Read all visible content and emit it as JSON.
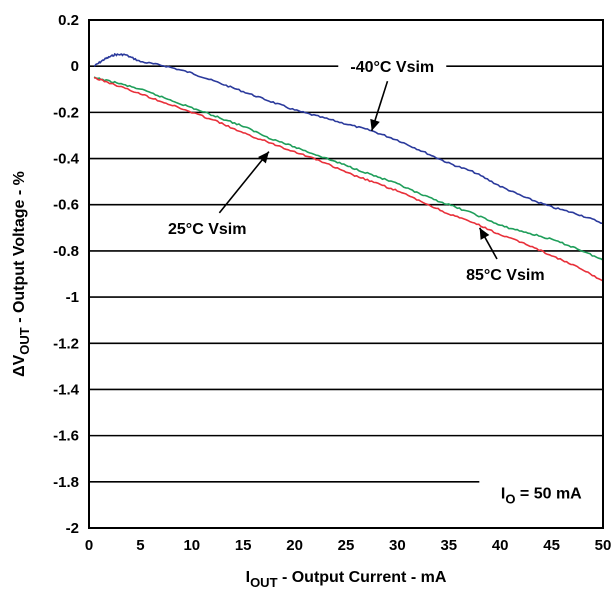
{
  "chart_data": {
    "type": "line",
    "xlabel": {
      "main": "I",
      "sub": "OUT",
      "rest": " - Output Current - mA"
    },
    "ylabel": {
      "delta": "ΔV",
      "sub": "OUT",
      "rest": " - Output Voltage - %"
    },
    "xlim": [
      0,
      50
    ],
    "ylim": [
      -2,
      0.2
    ],
    "xticks": [
      "0",
      "5",
      "10",
      "15",
      "20",
      "25",
      "30",
      "35",
      "40",
      "45",
      "50"
    ],
    "yticks": [
      "0.2",
      "0",
      "-0.2",
      "-0.4",
      "-0.6",
      "-0.8",
      "-1",
      "-1.2",
      "-1.4",
      "-1.6",
      "-1.8",
      "-2"
    ],
    "grid": "horizontal",
    "series": [
      {
        "name": "-40°C Vsim",
        "color": "#2b3a9c",
        "x": [
          0.5,
          1.5,
          2.5,
          3.5,
          5,
          7.5,
          10,
          12.5,
          15,
          17.5,
          20,
          22.5,
          25,
          27.5,
          30,
          32.5,
          35,
          37.5,
          40,
          42.5,
          45,
          47.5,
          50
        ],
        "y": [
          0.0,
          0.03,
          0.05,
          0.05,
          0.02,
          0.0,
          -0.03,
          -0.07,
          -0.11,
          -0.15,
          -0.19,
          -0.22,
          -0.25,
          -0.28,
          -0.32,
          -0.37,
          -0.42,
          -0.46,
          -0.52,
          -0.57,
          -0.61,
          -0.64,
          -0.68
        ]
      },
      {
        "name": "25°C Vsim",
        "color": "#1f9e5a",
        "x": [
          0.5,
          2.5,
          5,
          7.5,
          10,
          12.5,
          15,
          17.5,
          20,
          22.5,
          25,
          27.5,
          30,
          32.5,
          35,
          37.5,
          40,
          42.5,
          45,
          47.5,
          50
        ],
        "y": [
          -0.05,
          -0.07,
          -0.1,
          -0.14,
          -0.18,
          -0.22,
          -0.26,
          -0.31,
          -0.35,
          -0.39,
          -0.43,
          -0.47,
          -0.51,
          -0.56,
          -0.6,
          -0.64,
          -0.69,
          -0.72,
          -0.75,
          -0.79,
          -0.84
        ]
      },
      {
        "name": "85°C Vsim",
        "color": "#e8303a",
        "x": [
          0.5,
          2.5,
          5,
          7.5,
          10,
          12.5,
          15,
          17.5,
          20,
          22.5,
          25,
          27.5,
          30,
          32.5,
          35,
          37.5,
          40,
          42.5,
          45,
          47.5,
          50
        ],
        "y": [
          -0.05,
          -0.08,
          -0.12,
          -0.16,
          -0.2,
          -0.24,
          -0.29,
          -0.33,
          -0.37,
          -0.41,
          -0.46,
          -0.5,
          -0.54,
          -0.59,
          -0.64,
          -0.68,
          -0.73,
          -0.77,
          -0.82,
          -0.87,
          -0.93
        ]
      }
    ],
    "annotations": [
      {
        "text": "-40°C Vsim",
        "at": [
          29.5,
          0.0
        ],
        "arrow_to": [
          27.5,
          -0.28
        ]
      },
      {
        "text": "25°C Vsim",
        "at": [
          11.5,
          -0.7
        ],
        "arrow_to": [
          17.5,
          -0.37
        ]
      },
      {
        "text": "85°C Vsim",
        "at": [
          40.5,
          -0.9
        ],
        "arrow_to": [
          38,
          -0.7
        ]
      }
    ],
    "condition": {
      "main": "I",
      "sub": "O",
      "rest": " = 50 mA",
      "at": [
        44,
        -1.85
      ]
    }
  }
}
